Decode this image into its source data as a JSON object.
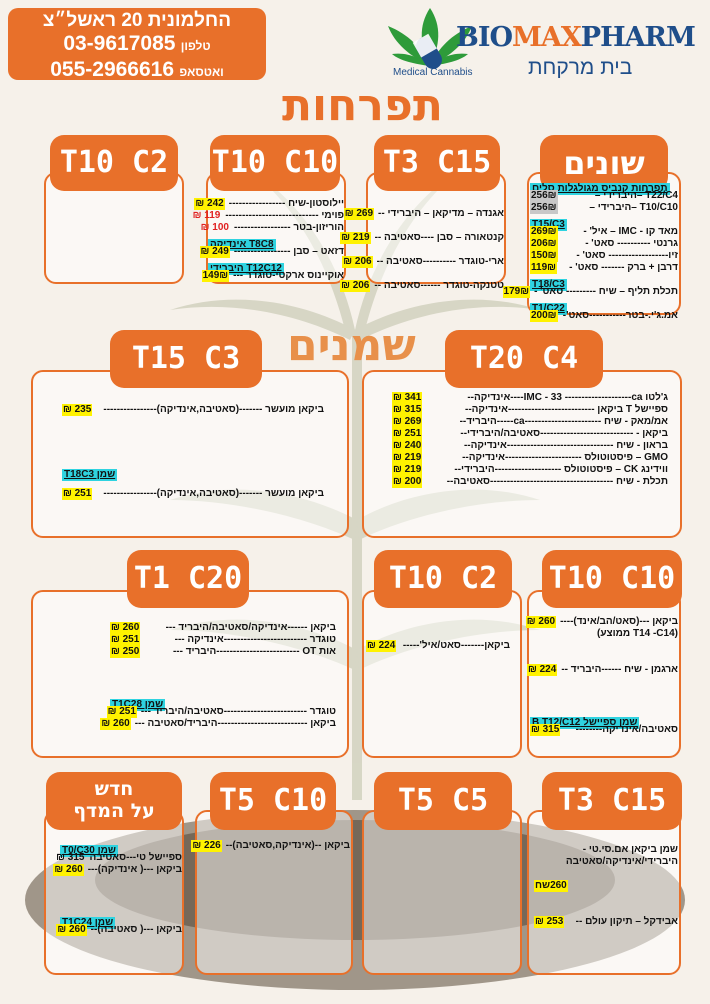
{
  "header": {
    "address": "החלמונית 20 ראשל״צ",
    "phone": "03-9617085",
    "phone_label": "טלפון",
    "whatsapp": "055-2966616",
    "whatsapp_label": "ואטסאפ"
  },
  "logo": {
    "bio": "BIO",
    "max": "MAX",
    "pharm": "PHARM",
    "subtitle": "בית מרקחת",
    "tagline": "Medical Cannabis"
  },
  "sections": {
    "flowers": "תפרחות",
    "oils": "שמנים"
  },
  "cards": {
    "various": {
      "title": "שונים",
      "lines": [
        {
          "type": "sub",
          "text": "תפרחות קנביס מגולגלות סלים"
        },
        {
          "text": "T22/C4 –היברידי –",
          "price": "256₪",
          "style": "g"
        },
        {
          "text": "T10/C10 –היברידי –",
          "price": "256₪",
          "style": "g"
        },
        {
          "type": "sub",
          "text": "T15/C3"
        },
        {
          "text": "מאד קו - IMC – איל' -",
          "price": "269₪"
        },
        {
          "text": "גרנטי ---------- סאט' -",
          "price": "206₪"
        },
        {
          "text": "זיו------------------ סאט' -",
          "price": "150₪"
        },
        {
          "text": "דרבן + ברק ------- סאט' -",
          "price": "119₪"
        },
        {
          "type": "sub",
          "text": "T18/C3"
        },
        {
          "text": "תכלת תליף – שיח --------- סאט' -",
          "price": "179₪"
        },
        {
          "type": "sub",
          "text": "T1/C22"
        },
        {
          "text": "אמ.ג'י.-בטר-----------סאט'-",
          "price": "200₪"
        }
      ]
    },
    "t3c15a": {
      "title": "T3 C15",
      "lines": [
        {
          "type": "gap"
        },
        {
          "text": "אגנדה – מדיקאן – היברידי --",
          "price": "269 ₪"
        },
        {
          "type": "gap"
        },
        {
          "text": "קנטאורה – סבן ----סאטיבה --",
          "price": "219 ₪"
        },
        {
          "type": "gap"
        },
        {
          "text": "ארי-טוגדר ----------סאטיבה --",
          "price": "206 ₪"
        },
        {
          "type": "gap"
        },
        {
          "text": "טטנקה-טוגדר ------סאטיבה --",
          "price": "206 ₪"
        }
      ]
    },
    "t10c10a": {
      "title": "T10 C10",
      "lines": [
        {
          "text": "יילוסטון-שיח -----------------",
          "price": "242 ₪"
        },
        {
          "text": "פוימי ----------------------------",
          "price": "119 ₪",
          "style": "r"
        },
        {
          "text": "הוריזון-בטר -----------------",
          "price": "100 ₪",
          "style": "r"
        },
        {
          "type": "sub",
          "text": "T8C8 אינדיקה"
        },
        {
          "text": "דזאט – סבן -----------------",
          "price": "249 ₪"
        },
        {
          "type": "sub",
          "text": "T12C12 היברידי"
        },
        {
          "text": "אוקיינוס ארקטי-טוגדר ---",
          "price": "149₪"
        }
      ]
    },
    "t10c2a": {
      "title": "T10 C2",
      "lines": []
    },
    "t15c3": {
      "title": "T15 C3",
      "lines": [
        {
          "type": "gap"
        },
        {
          "type": "gap"
        },
        {
          "text": "ביקאן מועשר -------(סאטיבה,אינדיקה)----------------",
          "price": "235 ₪"
        },
        {
          "type": "gap"
        },
        {
          "type": "gap"
        },
        {
          "type": "gap"
        },
        {
          "type": "gap"
        },
        {
          "type": "sub",
          "text": "שמן T18C3"
        },
        {
          "type": "gap"
        },
        {
          "text": "ביקאן מועשר -------(סאטיבה,אינדיקה)----------------",
          "price": "251 ₪"
        }
      ]
    },
    "t20c4": {
      "title": "T20 C4",
      "lines": [
        {
          "type": "gap"
        },
        {
          "text": "ג'לטו IMC - 33 --------------------ca----אינדיקה--",
          "price": "341 ₪"
        },
        {
          "text": "ספיישל T ביקאן --------------------------אינדיקה--",
          "price": "315 ₪"
        },
        {
          "text": "אמ/מאק - שיח -----------------------ca-----היבריד--",
          "price": "269 ₪"
        },
        {
          "text": "ביקאן - ----------------------------סאטיבה/היברידי--",
          "price": "251 ₪"
        },
        {
          "text": "בראון - שיח --------------------------------אינדיקה--",
          "price": "240 ₪"
        },
        {
          "text": "GMO – פיסטוטולס -----------------------אינדיקה--",
          "price": "219 ₪"
        },
        {
          "text": "ווידינג CK – פיסטוטולס --------------------היברידי--",
          "price": "219 ₪"
        },
        {
          "text": "תכלת - שיח -------------------------------------סאטיבה--",
          "price": "200 ₪"
        }
      ]
    },
    "t1c20": {
      "title": "T1 C20",
      "lines": [
        {
          "type": "gap"
        },
        {
          "text": "ביקאן ------אינדיקה/סאטיבה/היבריד ---",
          "price": "260 ₪"
        },
        {
          "text": "טוגדר -------------------------אינדיקה ---",
          "price": "251 ₪"
        },
        {
          "text": "אות OT -------------------------היבריד ---",
          "price": "250 ₪"
        },
        {
          "type": "gap"
        },
        {
          "type": "gap"
        },
        {
          "type": "gap"
        },
        {
          "type": "sub",
          "text": "שמן T1C28"
        },
        {
          "text": "טוגדר -------------------------סאטיבה/היבריד ---",
          "price": "251 ₪"
        },
        {
          "text": "ביקאן ---------------------------היבריד/סאטיבה ---",
          "price": "260 ₪"
        }
      ]
    },
    "t10c2b": {
      "title": "T10 C2",
      "lines": [
        {
          "type": "gap"
        },
        {
          "type": "gap"
        },
        {
          "text": "ביקאן-------סאט/איל'-----",
          "price": "224 ₪"
        }
      ]
    },
    "t10c10b": {
      "title": "T10 C10",
      "lines": [
        {
          "text": "ביקאן ---(סאט/הב/אינד)---- ",
          "price": "260 ₪"
        },
        {
          "text": "(T14 -C14 ממוצע)"
        },
        {
          "type": "gap"
        },
        {
          "type": "gap"
        },
        {
          "text": "ארגמן - שיח ------היבריד --",
          "price": "224 ₪"
        },
        {
          "type": "gap"
        },
        {
          "type": "gap"
        },
        {
          "type": "gap"
        },
        {
          "type": "sub",
          "text": "שמן ספיישל B  T12/C12"
        },
        {
          "text": "סאטיבה/אינדיקה--------",
          "price": "315 ₪"
        }
      ]
    },
    "new": {
      "title_line1": "חדש",
      "title_line2": "על המדף",
      "lines": [
        {
          "type": "sub",
          "text": "שמן T0/C30"
        },
        {
          "text": "ספיישל טי---סאטיבה",
          "price": "315 ₪",
          "plain": true
        },
        {
          "text": "ביקאן ---( אינדיקה)---",
          "price": "260 ₪"
        },
        {
          "type": "gap"
        },
        {
          "type": "gap"
        },
        {
          "type": "gap"
        },
        {
          "type": "sub",
          "text": "שמן T1C24"
        },
        {
          "text": "ביקאן ---( סאטיבה)--",
          "price": "260 ₪"
        }
      ]
    },
    "t5c10": {
      "title": "T5 C10",
      "lines": [
        {
          "text": "ביקאן --(אינדיקה,סאטיבה)--",
          "price": "226 ₪"
        }
      ]
    },
    "t5c5": {
      "title": "T5 C5",
      "lines": []
    },
    "t3c15b": {
      "title": "T3 C15",
      "lines": [
        {
          "text": "שמן ביקאן אם.סי.טי -"
        },
        {
          "text": "היברידי/אינדיקה/סאטיבה"
        },
        {
          "type": "gap"
        },
        {
          "text": "",
          "price": "260שח"
        },
        {
          "type": "gap"
        },
        {
          "type": "gap"
        },
        {
          "text": "אבידקל – תיקון עולם --",
          "price": "253 ₪"
        }
      ]
    }
  },
  "colors": {
    "accent": "#e8702a",
    "highlight": "#fff200",
    "subheader": "#2fd3e0",
    "logo_blue": "#1f4e8a"
  }
}
